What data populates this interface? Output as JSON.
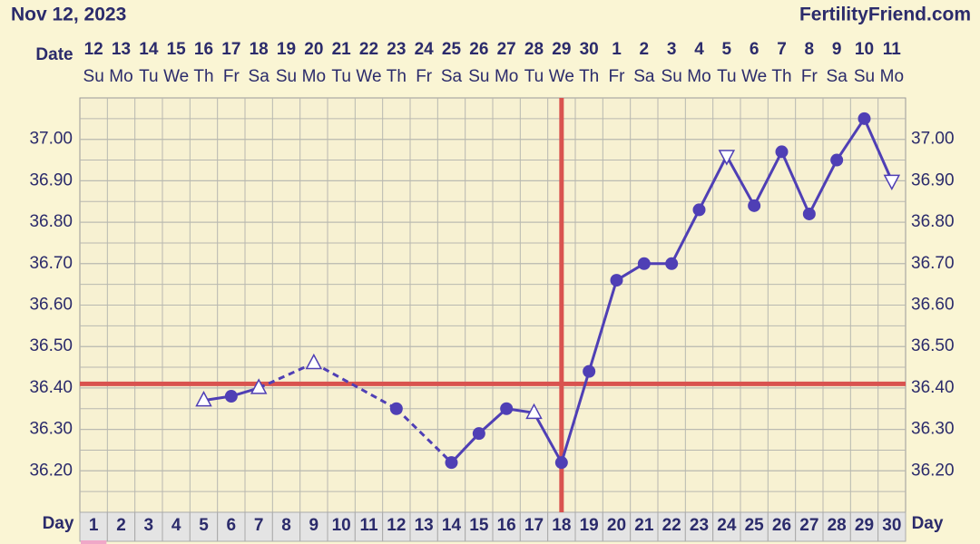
{
  "header": {
    "date": "Nov 12, 2023",
    "brand": "FertilityFriend.com"
  },
  "chart_data": {
    "type": "line",
    "date_label": "Date",
    "day_label": "Day",
    "dates": [
      12,
      13,
      14,
      15,
      16,
      17,
      18,
      19,
      20,
      21,
      22,
      23,
      24,
      25,
      26,
      27,
      28,
      29,
      30,
      1,
      2,
      3,
      4,
      5,
      6,
      7,
      8,
      9,
      10,
      11
    ],
    "weekdays": [
      "Su",
      "Mo",
      "Tu",
      "We",
      "Th",
      "Fr",
      "Sa",
      "Su",
      "Mo",
      "Tu",
      "We",
      "Th",
      "Fr",
      "Sa",
      "Su",
      "Mo",
      "Tu",
      "We",
      "Th",
      "Fr",
      "Sa",
      "Su",
      "Mo",
      "Tu",
      "We",
      "Th",
      "Fr",
      "Sa",
      "Su",
      "Mo"
    ],
    "categories": [
      1,
      2,
      3,
      4,
      5,
      6,
      7,
      8,
      9,
      10,
      11,
      12,
      13,
      14,
      15,
      16,
      17,
      18,
      19,
      20,
      21,
      22,
      23,
      24,
      25,
      26,
      27,
      28,
      29,
      30
    ],
    "series": [
      {
        "color": "#4f3fb5",
        "values": [
          null,
          null,
          null,
          null,
          36.37,
          36.38,
          36.4,
          null,
          36.46,
          null,
          null,
          36.35,
          null,
          36.22,
          36.29,
          36.35,
          36.34,
          36.22,
          36.44,
          36.66,
          36.7,
          36.7,
          36.83,
          36.96,
          36.84,
          36.97,
          36.82,
          36.95,
          37.05,
          36.9
        ],
        "markers": [
          null,
          null,
          null,
          null,
          "up",
          "dot",
          "up",
          null,
          "up",
          null,
          null,
          "dot",
          null,
          "dot",
          "dot",
          "dot",
          "up",
          "dot",
          "dot",
          "dot",
          "dot",
          "dot",
          "dot",
          "down",
          "dot",
          "dot",
          "dot",
          "dot",
          "dot",
          "down"
        ]
      }
    ],
    "ylim": [
      36.1,
      37.1
    ],
    "yticks": [
      {
        "value": 36.2,
        "label": "36.20"
      },
      {
        "value": 36.3,
        "label": "36.30"
      },
      {
        "value": 36.4,
        "label": "36.40"
      },
      {
        "value": 36.5,
        "label": "36.50"
      },
      {
        "value": 36.6,
        "label": "36.60"
      },
      {
        "value": 36.7,
        "label": "36.70"
      },
      {
        "value": 36.8,
        "label": "36.80"
      },
      {
        "value": 36.9,
        "label": "36.90"
      },
      {
        "value": 37.0,
        "label": "37.00"
      }
    ],
    "grid": true,
    "coverline": 36.41,
    "ovulation_day": 18,
    "line_color_marks": "#d9534f"
  }
}
